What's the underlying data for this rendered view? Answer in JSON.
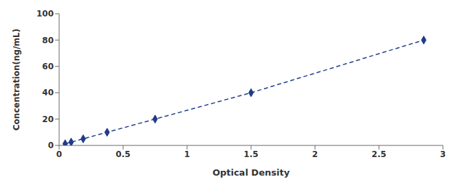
{
  "chart_data": {
    "type": "line",
    "x": [
      0.047,
      0.094,
      0.188,
      0.375,
      0.75,
      1.5,
      2.85
    ],
    "values": [
      1.25,
      2.5,
      5.0,
      10.0,
      20.0,
      40.0,
      80.0
    ],
    "color": "#1f3b8a",
    "marker": "diamond",
    "line_style": "dashed",
    "xlabel": "Optical Density",
    "ylabel": "Concentration(ng/mL)",
    "xlim": [
      0,
      3.0
    ],
    "ylim": [
      0,
      100
    ],
    "xticks": [
      0,
      0.5,
      1,
      1.5,
      2,
      2.5,
      3
    ],
    "yticks": [
      0,
      20,
      40,
      60,
      80,
      100
    ],
    "grid": false
  }
}
